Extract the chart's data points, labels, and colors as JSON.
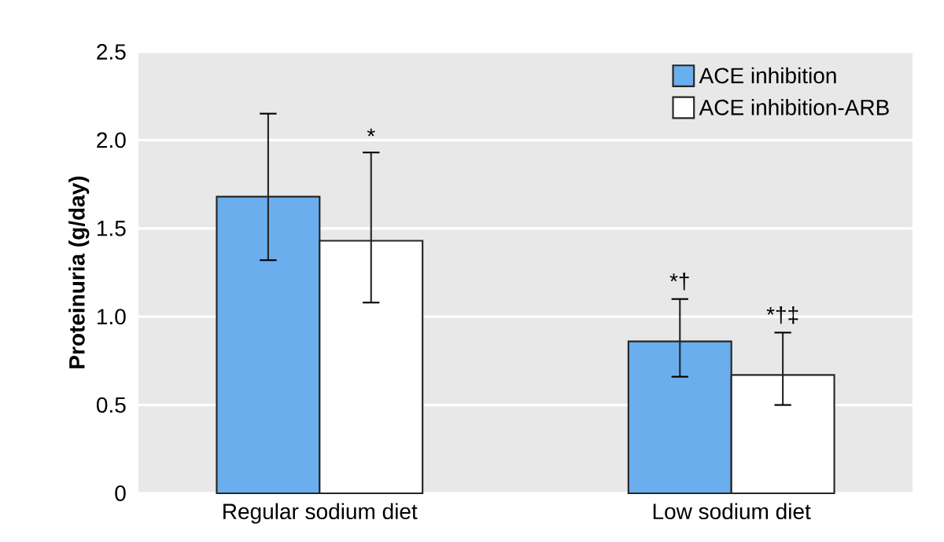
{
  "chart_data": {
    "type": "bar",
    "ylabel": "Proteinuria (g/day)",
    "categories": [
      "Regular sodium diet",
      "Low sodium diet"
    ],
    "series": [
      {
        "name": "ACE inhibition",
        "color": "#6aaeee",
        "values": [
          1.68,
          0.86
        ],
        "errors": [
          [
            1.32,
            2.15
          ],
          [
            0.66,
            1.1
          ]
        ]
      },
      {
        "name": "ACE inhibition-ARB",
        "color": "#ffffff",
        "values": [
          1.43,
          0.67
        ],
        "errors": [
          [
            1.08,
            1.93
          ],
          [
            0.5,
            0.91
          ]
        ]
      }
    ],
    "annotations": [
      "*",
      "*†",
      "*†‡"
    ],
    "ylim": [
      0,
      2.5
    ],
    "yticks": [
      0,
      0.5,
      {
        "value": 1,
        "label": "1.0"
      },
      1.5,
      {
        "value": 2,
        "label": "2.0"
      },
      2.5
    ],
    "grid": "y",
    "legend": "top right"
  }
}
